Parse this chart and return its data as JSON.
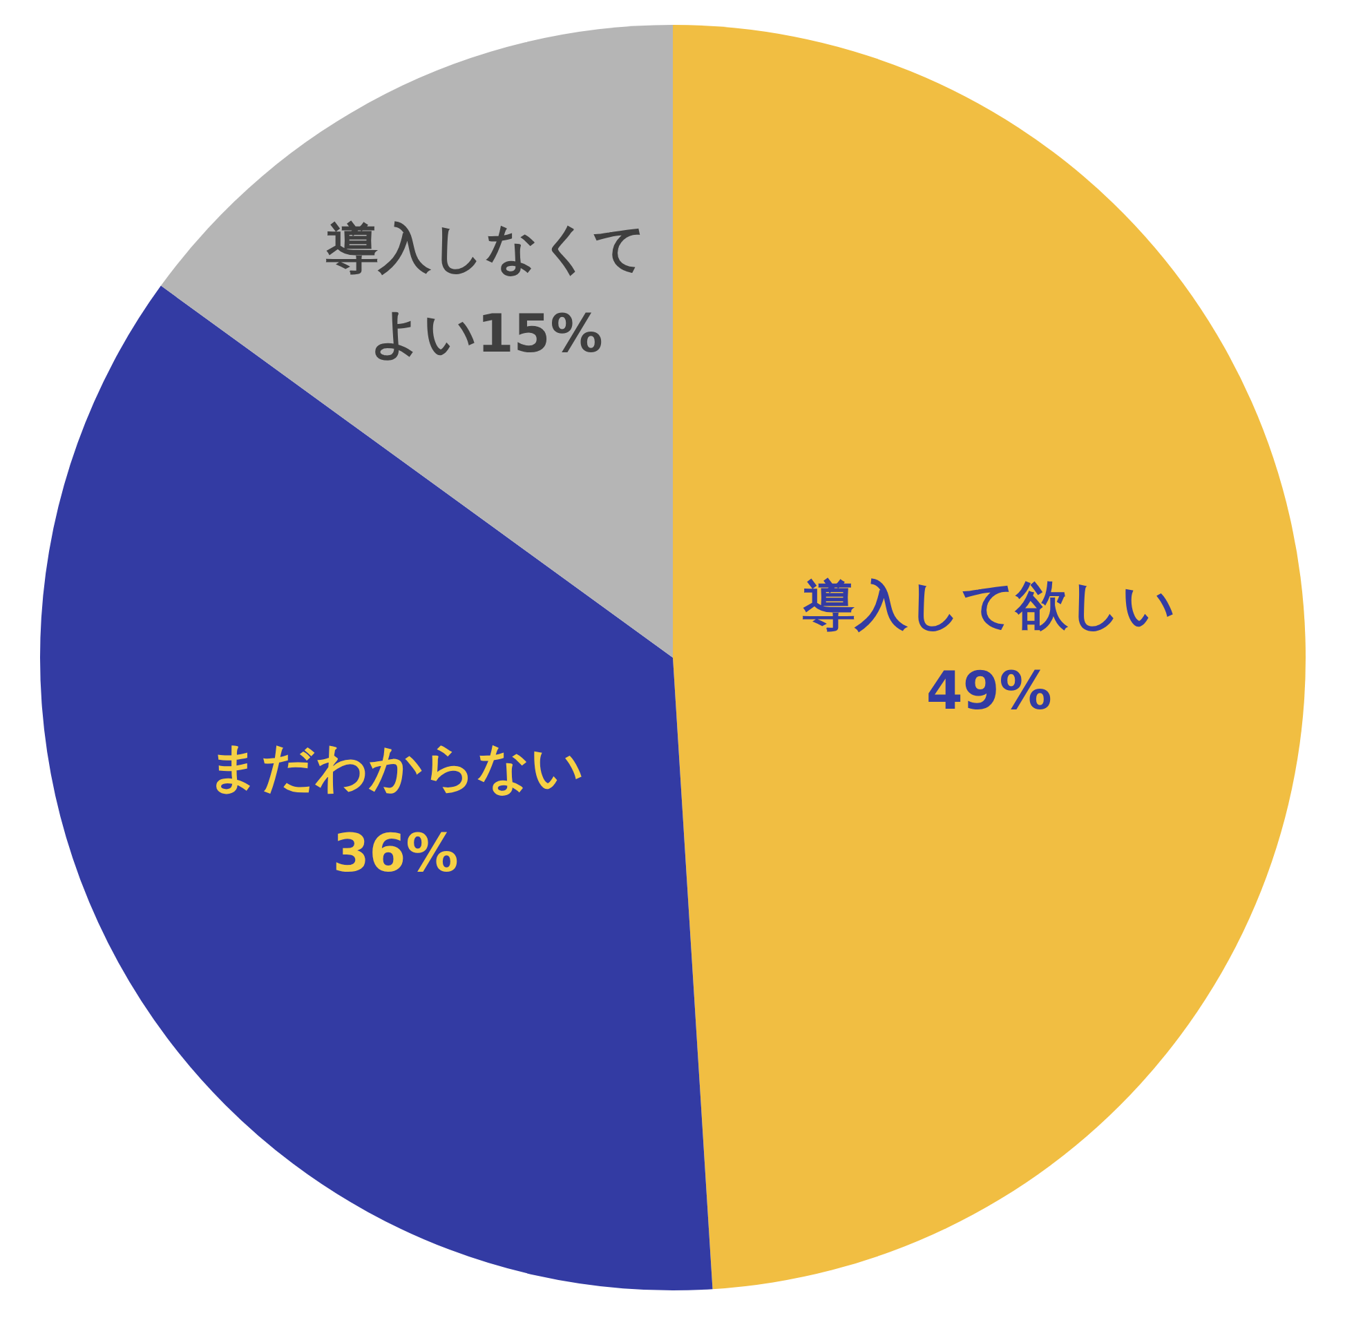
{
  "chart_data": {
    "type": "pie",
    "categories": [
      "導入して欲しい",
      "まだわからない",
      "導入しなくてよい"
    ],
    "values": [
      49,
      36,
      15
    ],
    "colors": [
      "#f1be42",
      "#333ba3",
      "#b5b5b5"
    ],
    "value_labels": [
      "49%",
      "36%",
      "15%"
    ]
  }
}
